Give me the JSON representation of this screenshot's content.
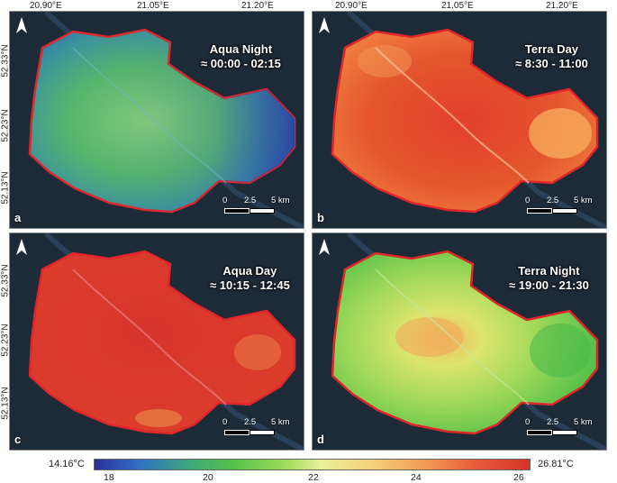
{
  "top_longitudes": [
    "20.90°E",
    "21.05°E",
    "21.20°E"
  ],
  "left_latitudes": [
    "52.33°N",
    "52.23°N",
    "52.13°N"
  ],
  "panels": [
    {
      "letter": "a",
      "title": "Aqua Night",
      "time": "≈ 00:00 - 02:15"
    },
    {
      "letter": "b",
      "title": "Terra Day",
      "time": "≈ 8:30 - 11:00"
    },
    {
      "letter": "c",
      "title": "Aqua Day",
      "time": "≈ 10:15 - 12:45"
    },
    {
      "letter": "d",
      "title": "Terra Night",
      "time": "≈ 19:00 - 21:30"
    }
  ],
  "scale": {
    "zero": "0",
    "mid": "2.5",
    "end": "5 km"
  },
  "legend": {
    "min": "14.16°C",
    "max": "26.81°C",
    "ticks": [
      "18",
      "20",
      "22",
      "24",
      "26"
    ]
  },
  "colors": {
    "boundary": "#e0262a",
    "cold": "#2a2e9a",
    "green": "#55c24a",
    "yellow": "#e8f09a",
    "hot": "#d6332a"
  }
}
